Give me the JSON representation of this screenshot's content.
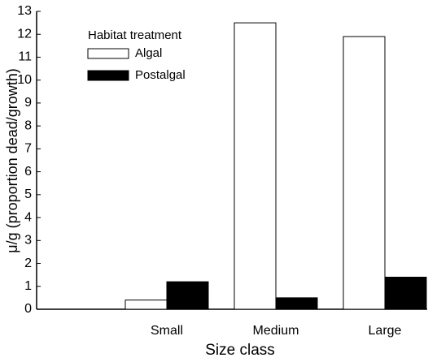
{
  "chart_data": {
    "type": "bar",
    "x_label": "Size class",
    "y_label": "μ/g (proportion dead/growth)",
    "legend_title": "Habitat treatment",
    "legend": "upper left",
    "categories": [
      "Small",
      "Medium",
      "Large"
    ],
    "series": [
      {
        "name": "Algal",
        "color": "#ffffff",
        "values": [
          0.4,
          12.5,
          11.9
        ]
      },
      {
        "name": "Postalgal",
        "color": "#000000",
        "values": [
          1.2,
          0.5,
          1.4
        ]
      }
    ],
    "ylim": [
      0,
      13
    ],
    "yticks": [
      0,
      1,
      2,
      3,
      4,
      5,
      6,
      7,
      8,
      9,
      10,
      11,
      12,
      13
    ]
  }
}
